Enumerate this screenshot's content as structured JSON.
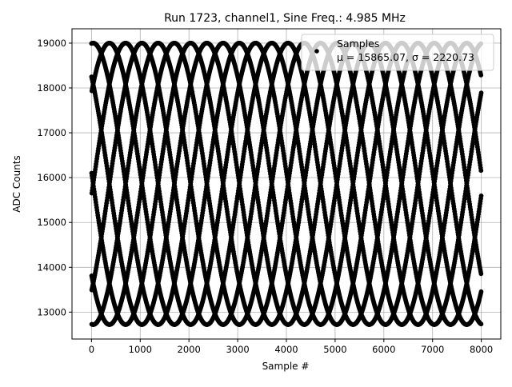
{
  "chart_data": {
    "type": "scatter",
    "title": "Run 1723, channel1, Sine Freq.: 4.985 MHz",
    "xlabel": "Sample #",
    "ylabel": "ADC Counts",
    "xlim": [
      -400,
      8400
    ],
    "ylim": [
      12400,
      19320
    ],
    "xticks": [
      0,
      1000,
      2000,
      3000,
      4000,
      5000,
      6000,
      7000,
      8000
    ],
    "yticks": [
      13000,
      14000,
      15000,
      16000,
      17000,
      18000,
      19000
    ],
    "grid": true,
    "legend": {
      "placement": "top-right",
      "entries": [
        {
          "label": "Samples",
          "stats": "μ = 15865.07, σ = 2220.73"
        }
      ]
    },
    "series": [
      {
        "name": "Samples",
        "marker": "dot",
        "color": "#000000",
        "n_samples": 8000,
        "model": "y = mean + amplitude * sin(2π * cycles_per_sample * n + phase_rad)",
        "mean": 15862,
        "amplitude": 3140,
        "cycles_per_sample": 0.125375,
        "phase_rad": 1.49
      }
    ]
  }
}
